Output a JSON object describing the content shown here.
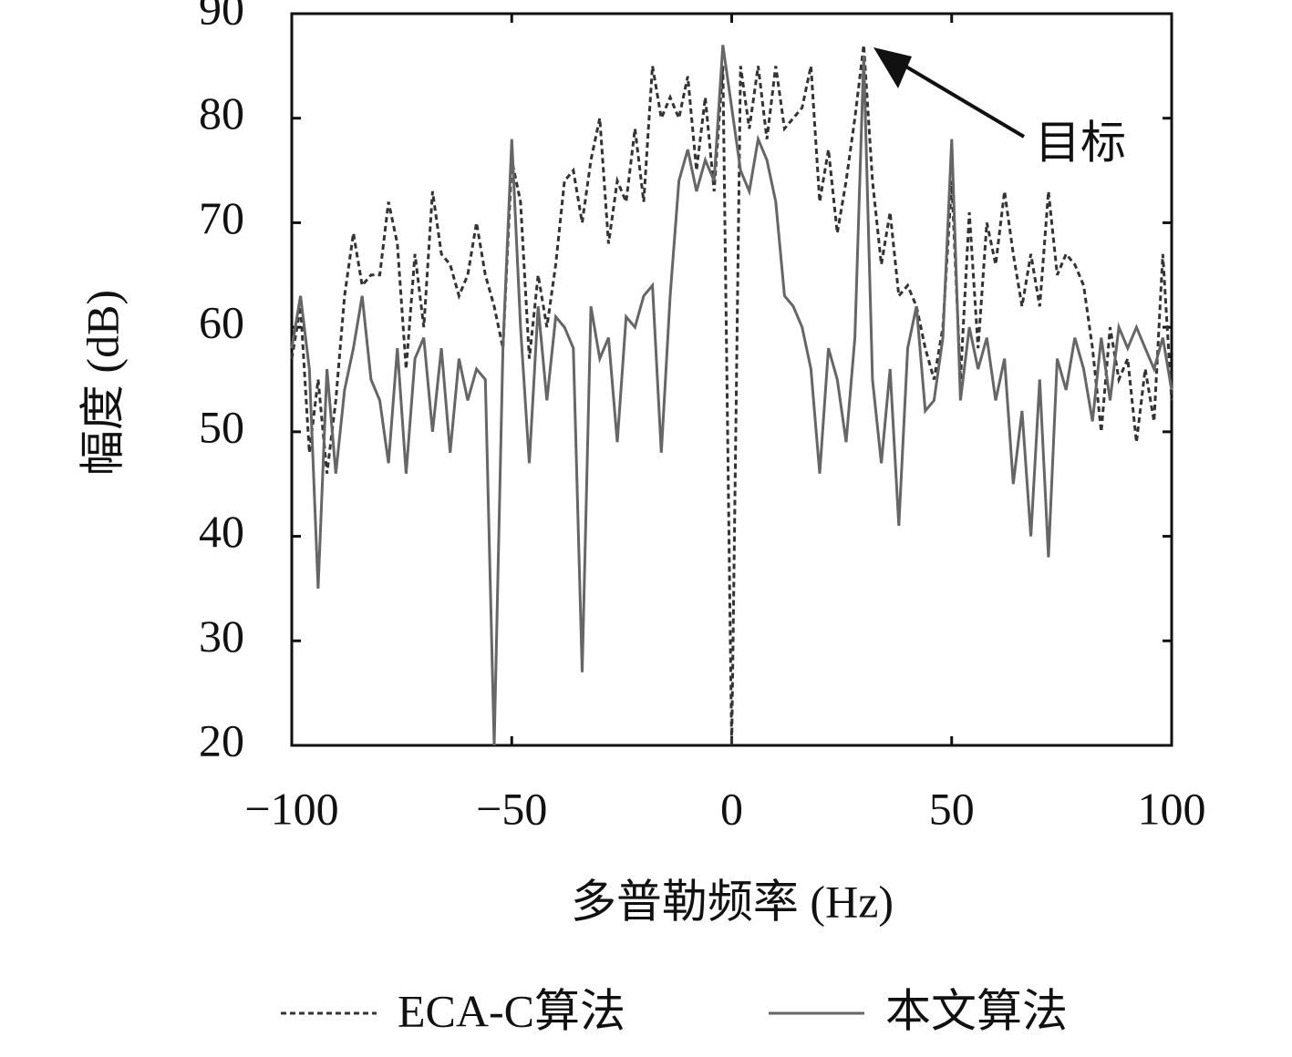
{
  "chart_data": {
    "type": "line",
    "xlabel": "多普勒频率 (Hz)",
    "ylabel": "幅度 (dB)",
    "x": [
      -100,
      -98,
      -96,
      -94,
      -92,
      -90,
      -88,
      -86,
      -84,
      -82,
      -80,
      -78,
      -76,
      -74,
      -72,
      -70,
      -68,
      -66,
      -64,
      -62,
      -60,
      -58,
      -56,
      -54,
      -52,
      -50,
      -48,
      -46,
      -44,
      -42,
      -40,
      -38,
      -36,
      -34,
      -32,
      -30,
      -28,
      -26,
      -24,
      -22,
      -20,
      -18,
      -16,
      -14,
      -12,
      -10,
      -8,
      -6,
      -4,
      -2,
      0,
      2,
      4,
      6,
      8,
      10,
      12,
      14,
      16,
      18,
      20,
      22,
      24,
      26,
      28,
      30,
      32,
      34,
      36,
      38,
      40,
      42,
      44,
      46,
      48,
      50,
      52,
      54,
      56,
      58,
      60,
      62,
      64,
      66,
      68,
      70,
      72,
      74,
      76,
      78,
      80,
      82,
      84,
      86,
      88,
      90,
      92,
      94,
      96,
      98,
      100
    ],
    "series": [
      {
        "name": "ECA-C算法",
        "color": "#333333",
        "dash": "6,4",
        "values": [
          57,
          62,
          48,
          55,
          46,
          53,
          63,
          69,
          64,
          65,
          65,
          72,
          68,
          56,
          67,
          60,
          73,
          67,
          66,
          63,
          65,
          70,
          65,
          62,
          58,
          76,
          72,
          57,
          65,
          60,
          66,
          74,
          75,
          70,
          76,
          80,
          68,
          74,
          72,
          79,
          72,
          85,
          80,
          82,
          80,
          84,
          75,
          82,
          73,
          85,
          20,
          85,
          79,
          85,
          78,
          85,
          79,
          80,
          81,
          85,
          72,
          77,
          69,
          74,
          80,
          87,
          74,
          66,
          71,
          63,
          64,
          62,
          58,
          55,
          60,
          74,
          55,
          71,
          58,
          70,
          66,
          73,
          67,
          62,
          67,
          62,
          73,
          65,
          67,
          66,
          64,
          58,
          50,
          60,
          55,
          57,
          49,
          56,
          51,
          67,
          53
        ]
      },
      {
        "name": "本文算法",
        "color": "#666666",
        "dash": "none",
        "values": [
          58,
          63,
          56,
          35,
          56,
          46,
          54,
          58,
          63,
          55,
          53,
          47,
          58,
          46,
          57,
          59,
          50,
          58,
          48,
          57,
          53,
          56,
          55,
          20,
          58,
          78,
          60,
          47,
          62,
          53,
          61,
          60,
          58,
          27,
          62,
          57,
          59,
          49,
          61,
          60,
          63,
          64,
          48,
          63,
          74,
          77,
          73,
          76,
          74,
          87,
          81,
          75,
          73,
          78,
          76,
          72,
          63,
          62,
          60,
          56,
          46,
          58,
          55,
          49,
          59,
          86,
          55,
          47,
          56,
          41,
          58,
          62,
          52,
          53,
          59,
          78,
          53,
          60,
          56,
          59,
          53,
          57,
          45,
          52,
          40,
          55,
          38,
          57,
          54,
          59,
          56,
          51,
          59,
          53,
          60,
          58,
          60,
          58,
          56,
          59,
          54
        ]
      }
    ],
    "xlim": [
      -100,
      100
    ],
    "xticks": [
      {
        "value": -100,
        "label": "−100"
      },
      {
        "value": -50,
        "label": "−50"
      },
      0,
      50,
      100
    ],
    "ylim": [
      20,
      90
    ],
    "yticks": [
      20,
      30,
      40,
      50,
      60,
      70,
      80,
      90
    ],
    "annotation": "目标",
    "legend": "bottom"
  }
}
